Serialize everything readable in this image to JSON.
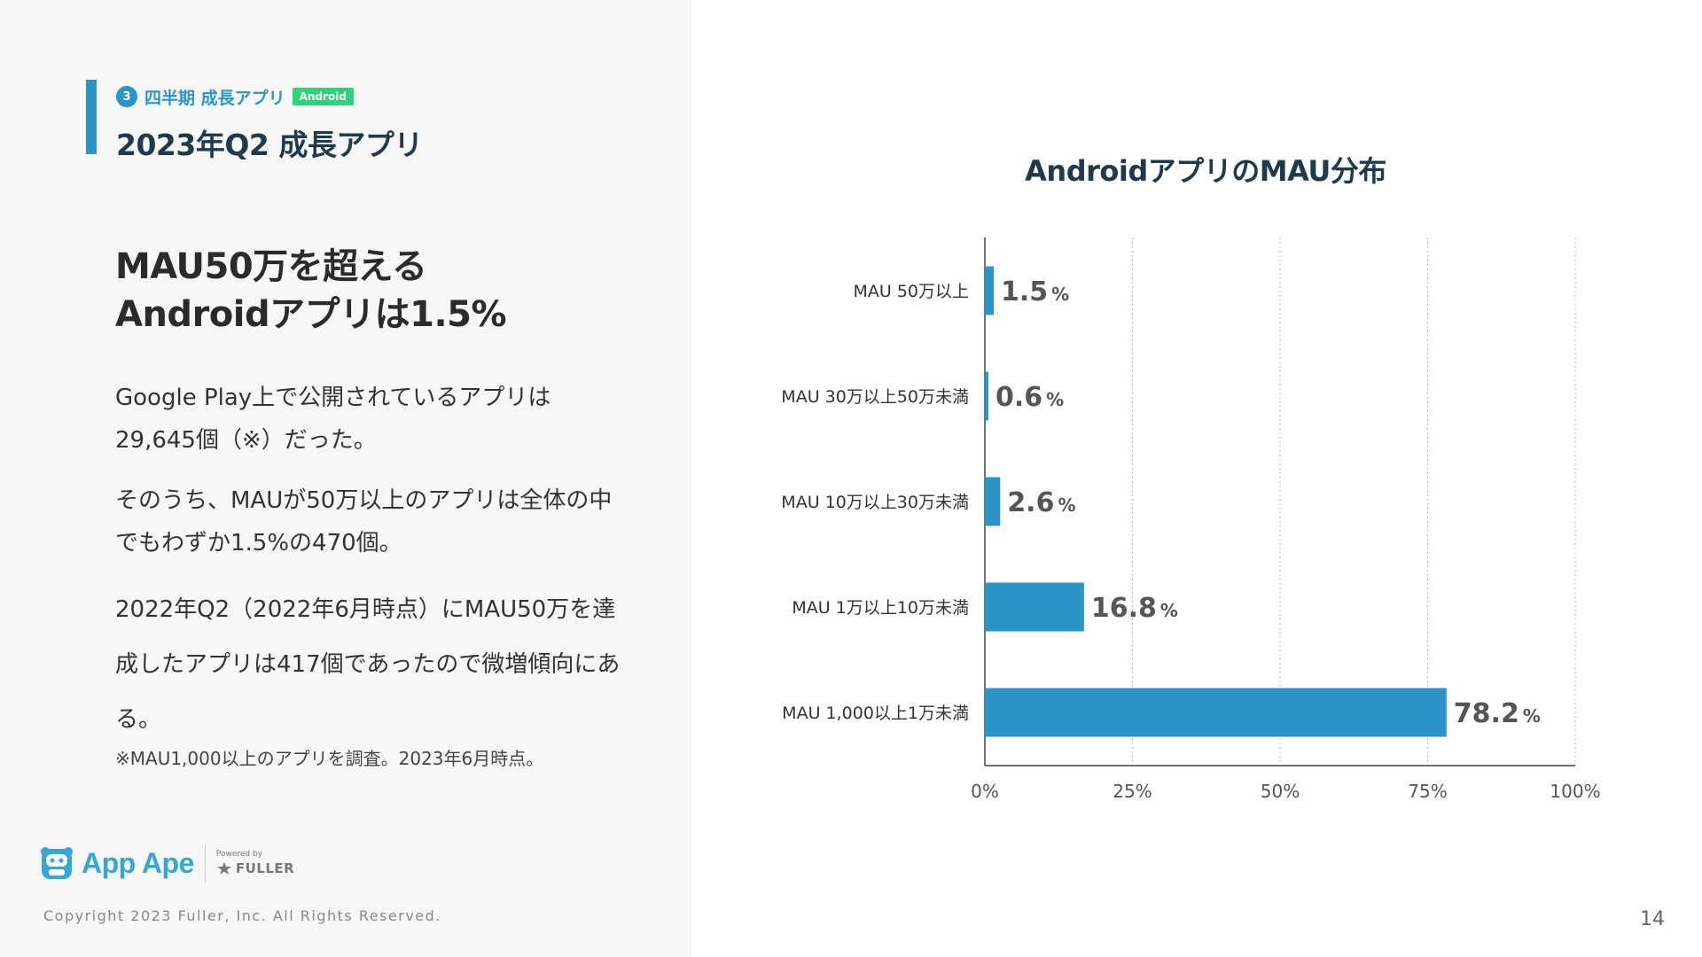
{
  "slide": {
    "section_number": "3",
    "section_label": "四半期 成長アプリ",
    "platform_badge": "Android",
    "title": "2023年Q2 成長アプリ",
    "headline_line1": "MAU50万を超える",
    "headline_line2": "Androidアプリは1.5%",
    "paragraphs": [
      "Google Play上で公開されているアプリは29,645個（※）だった。",
      "そのうち、MAUが50万以上のアプリは全体の中でもわずか1.5%の470個。",
      "2022年Q2（2022年6月時点）にMAU50万を達成したアプリは417個であったので微増傾向にある。"
    ],
    "footnote": "※MAU1,000以上のアプリを調査。2023年6月時点。",
    "page_number": "14"
  },
  "footer": {
    "brand": "App Ape",
    "powered_by": "Powered by",
    "company": "FULLER",
    "copyright": "Copyright 2023 Fuller, Inc. All Rights Reserved."
  },
  "colors": {
    "accent": "#2b95c8",
    "badge": "#2fd27a",
    "bar": "#2b95c8",
    "title": "#1e3a4c"
  },
  "chart_data": {
    "type": "bar",
    "orientation": "horizontal",
    "title": "AndroidアプリのMAU分布",
    "categories": [
      "MAU 50万以上",
      "MAU 30万以上50万未満",
      "MAU 10万以上30万未満",
      "MAU 1万以上10万未満",
      "MAU 1,000以上1万未満"
    ],
    "values": [
      1.5,
      0.6,
      2.6,
      16.8,
      78.2
    ],
    "value_labels": [
      "1.5",
      "0.6",
      "2.6",
      "16.8",
      "78.2"
    ],
    "value_unit": "%",
    "xlim": [
      0,
      100
    ],
    "xticks": [
      0,
      25,
      50,
      75,
      100
    ],
    "xtick_labels": [
      "0%",
      "25%",
      "50%",
      "75%",
      "100%"
    ],
    "gridlines": "dotted vertical",
    "legend": "none"
  }
}
